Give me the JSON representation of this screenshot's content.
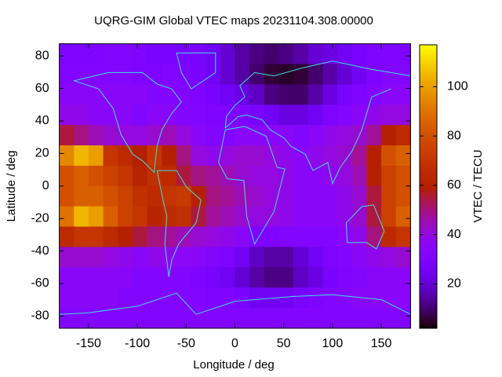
{
  "chart_data": {
    "type": "heatmap",
    "title": "UQRG-GIM Global VTEC maps 20231104.308.00000",
    "x_label": "Longitude / deg",
    "y_label": "Latitude / deg",
    "colorbar_label": "VTEC / TECU",
    "colormap": "gnuplot",
    "xlim": [
      -180,
      180
    ],
    "ylim": [
      -87.5,
      87.5
    ],
    "zlim": [
      2,
      117
    ],
    "xticks": [
      -150,
      -100,
      -50,
      0,
      50,
      100,
      150
    ],
    "yticks": [
      -80,
      -60,
      -40,
      -20,
      0,
      20,
      40,
      60,
      80
    ],
    "zticks": [
      20,
      40,
      60,
      80,
      100
    ],
    "x": [
      -172.5,
      -157.5,
      -142.5,
      -127.5,
      -112.5,
      -97.5,
      -82.5,
      -67.5,
      -52.5,
      -37.5,
      -22.5,
      -7.5,
      7.5,
      22.5,
      37.5,
      52.5,
      67.5,
      82.5,
      97.5,
      112.5,
      127.5,
      142.5,
      157.5,
      172.5
    ],
    "y": [
      81.25,
      68.75,
      56.25,
      43.75,
      31.25,
      18.75,
      6.25,
      -6.25,
      -18.75,
      -31.25,
      -43.75,
      -56.25,
      -68.75,
      -81.25
    ],
    "z": [
      [
        30,
        30,
        30,
        32,
        32,
        30,
        28,
        28,
        28,
        28,
        25,
        20,
        15,
        12,
        10,
        12,
        15,
        20,
        22,
        25,
        28,
        30,
        30,
        30
      ],
      [
        32,
        32,
        32,
        32,
        32,
        30,
        30,
        32,
        30,
        28,
        25,
        20,
        15,
        10,
        6,
        5,
        6,
        10,
        15,
        20,
        25,
        30,
        32,
        32
      ],
      [
        35,
        35,
        35,
        35,
        35,
        35,
        32,
        32,
        32,
        30,
        28,
        25,
        22,
        18,
        12,
        10,
        10,
        15,
        22,
        28,
        30,
        32,
        35,
        35
      ],
      [
        38,
        38,
        35,
        35,
        35,
        32,
        35,
        35,
        32,
        32,
        30,
        30,
        30,
        28,
        25,
        22,
        22,
        25,
        30,
        32,
        35,
        38,
        40,
        40
      ],
      [
        55,
        50,
        45,
        42,
        40,
        40,
        42,
        45,
        40,
        35,
        32,
        32,
        35,
        35,
        35,
        35,
        32,
        35,
        38,
        40,
        42,
        48,
        60,
        65
      ],
      [
        95,
        105,
        100,
        70,
        65,
        60,
        70,
        60,
        50,
        40,
        38,
        40,
        42,
        42,
        40,
        38,
        35,
        38,
        40,
        42,
        48,
        60,
        80,
        85
      ],
      [
        80,
        85,
        80,
        75,
        70,
        62,
        68,
        65,
        55,
        50,
        48,
        45,
        42,
        40,
        40,
        38,
        35,
        35,
        38,
        40,
        45,
        60,
        75,
        80
      ],
      [
        80,
        85,
        85,
        80,
        75,
        68,
        65,
        70,
        72,
        60,
        50,
        48,
        45,
        42,
        40,
        38,
        35,
        35,
        35,
        38,
        42,
        55,
        75,
        80
      ],
      [
        90,
        105,
        100,
        85,
        75,
        70,
        62,
        65,
        68,
        55,
        48,
        45,
        42,
        40,
        40,
        38,
        35,
        35,
        35,
        38,
        42,
        55,
        75,
        85
      ],
      [
        65,
        70,
        70,
        65,
        60,
        55,
        50,
        48,
        45,
        42,
        40,
        38,
        35,
        30,
        30,
        32,
        32,
        32,
        32,
        35,
        38,
        50,
        65,
        70
      ],
      [
        42,
        42,
        42,
        40,
        38,
        35,
        38,
        38,
        36,
        35,
        32,
        30,
        25,
        18,
        15,
        15,
        20,
        25,
        30,
        32,
        35,
        38,
        40,
        42
      ],
      [
        35,
        35,
        35,
        35,
        35,
        32,
        32,
        32,
        32,
        30,
        28,
        25,
        20,
        15,
        12,
        12,
        18,
        22,
        28,
        30,
        32,
        35,
        35,
        35
      ],
      [
        35,
        35,
        35,
        35,
        32,
        32,
        32,
        32,
        32,
        32,
        30,
        30,
        28,
        25,
        25,
        25,
        28,
        30,
        32,
        32,
        35,
        35,
        35,
        35
      ],
      [
        32,
        32,
        32,
        32,
        32,
        32,
        32,
        32,
        32,
        32,
        32,
        32,
        32,
        32,
        32,
        32,
        32,
        32,
        32,
        32,
        32,
        32,
        32,
        32
      ]
    ]
  }
}
